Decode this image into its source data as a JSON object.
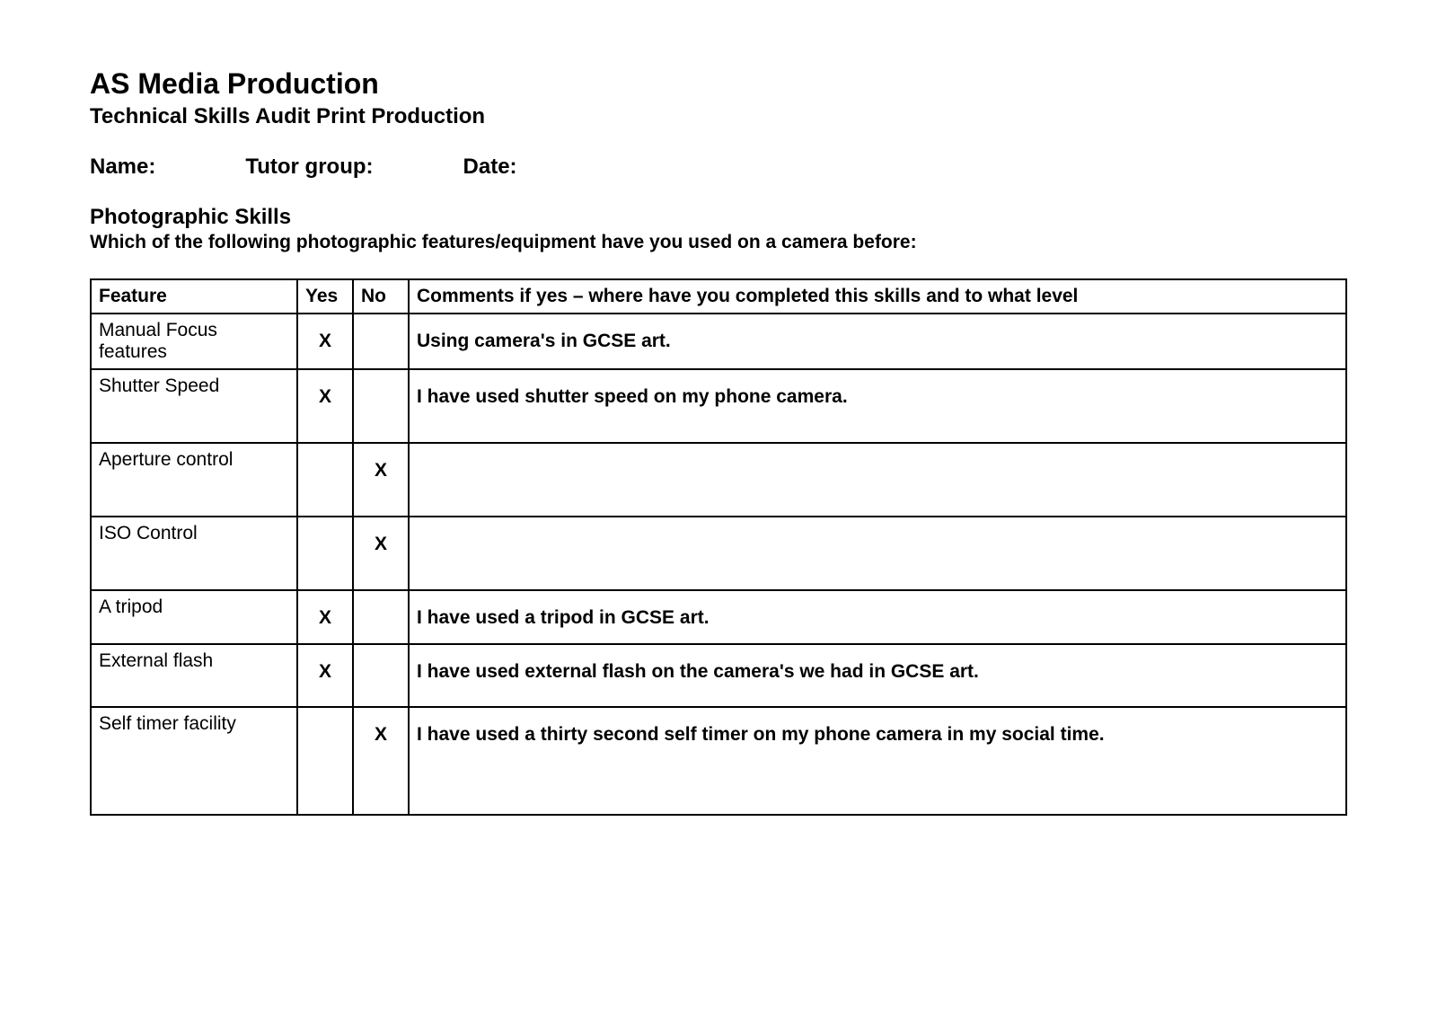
{
  "header": {
    "title": "AS Media Production",
    "subtitle": "Technical Skills Audit Print Production"
  },
  "form": {
    "name_label": "Name:",
    "tutor_label": "Tutor group:",
    "date_label": "Date:"
  },
  "section": {
    "title": "Photographic Skills",
    "question": "Which of the following photographic features/equipment have you used on a camera before:"
  },
  "table": {
    "headers": {
      "feature": "Feature",
      "yes": "Yes",
      "no": "No",
      "comments": "Comments if yes – where have you completed this skills and to what level"
    },
    "rows": [
      {
        "feature": "Manual Focus features",
        "yes": "X",
        "no": "",
        "comment": "Using camera's in GCSE art.",
        "height_class": "row-short"
      },
      {
        "feature": "Shutter Speed",
        "yes": "X",
        "no": "",
        "comment": "I have used shutter speed on my phone camera.",
        "height_class": ""
      },
      {
        "feature": "Aperture control",
        "yes": "",
        "no": "X",
        "comment": "",
        "height_class": ""
      },
      {
        "feature": "ISO Control",
        "yes": "",
        "no": "X",
        "comment": "",
        "height_class": ""
      },
      {
        "feature": "A tripod",
        "yes": "X",
        "no": "",
        "comment": "I have used a tripod in GCSE art.",
        "height_class": "row-short"
      },
      {
        "feature": "External flash",
        "yes": "X",
        "no": "",
        "comment": "I have used external flash on the camera's we had in GCSE art.",
        "height_class": "row-medium"
      },
      {
        "feature": "Self timer facility",
        "yes": "",
        "no": "X",
        "comment": "I have used a thirty second self timer on my phone camera in my social time.",
        "height_class": "row-taller"
      }
    ]
  }
}
